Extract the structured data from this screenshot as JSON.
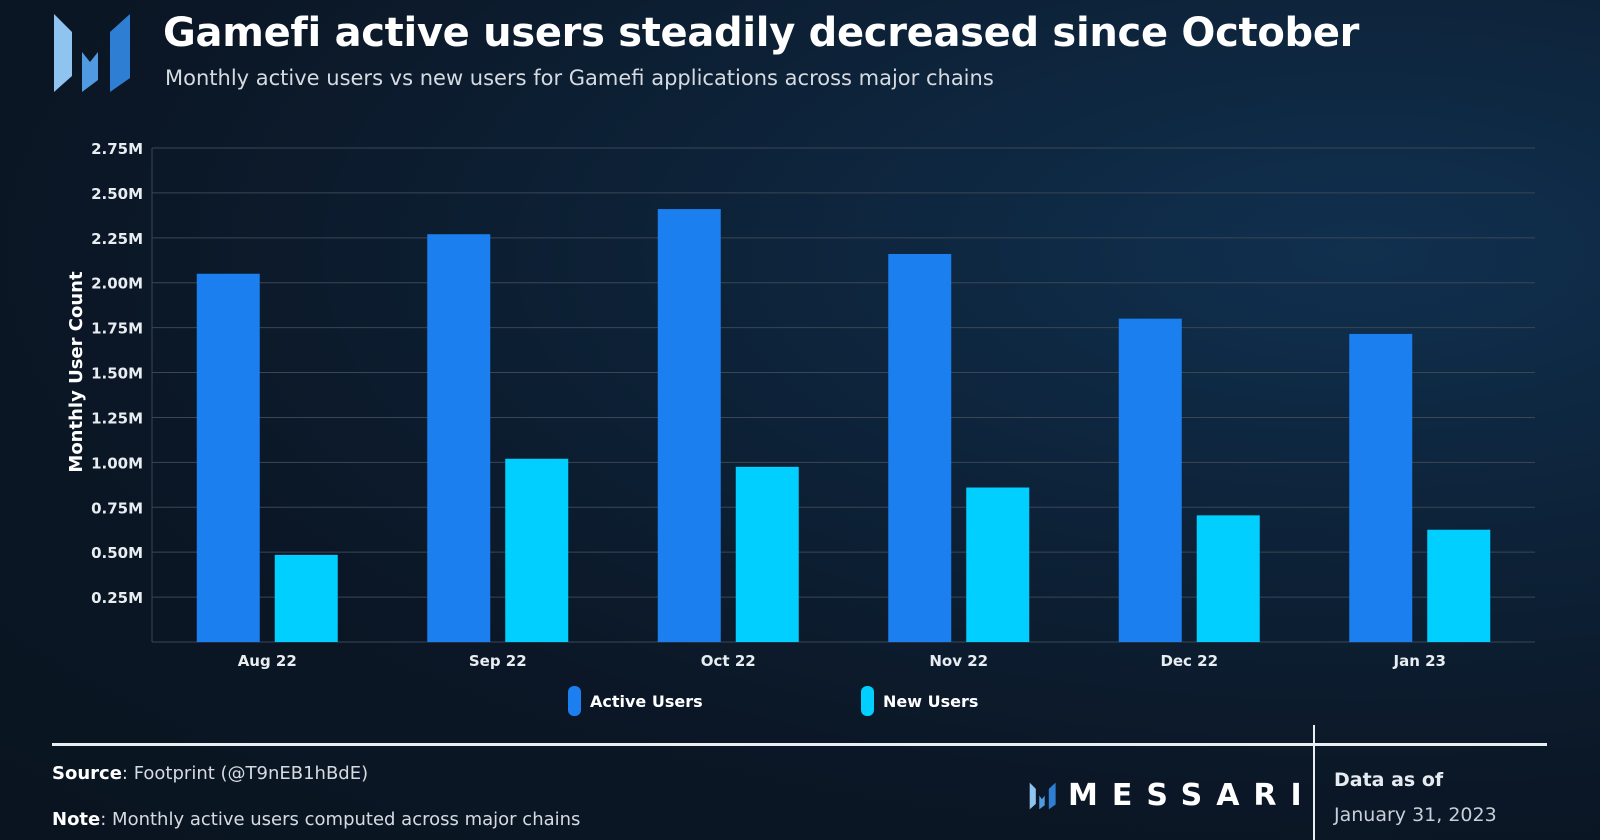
{
  "header": {
    "title": "Gamefi active users steadily decreased since October",
    "subtitle": "Monthly active users vs new users for Gamefi applications across major chains"
  },
  "chart_data": {
    "type": "bar",
    "title": "Gamefi active users steadily decreased since October",
    "subtitle": "Monthly active users vs new users for Gamefi applications across major chains",
    "xlabel": "",
    "ylabel": "Monthly User Count",
    "ylim": [
      0,
      2.75
    ],
    "y_unit": "M",
    "yticks": [
      0.25,
      0.5,
      0.75,
      1.0,
      1.25,
      1.5,
      1.75,
      2.0,
      2.25,
      2.5,
      2.75
    ],
    "ytick_labels": [
      "0.25M",
      "0.50M",
      "0.75M",
      "1.00M",
      "1.25M",
      "1.50M",
      "1.75M",
      "2.00M",
      "2.25M",
      "2.50M",
      "2.75M"
    ],
    "grid": true,
    "legend_position": "bottom-center",
    "categories": [
      "Aug 22",
      "Sep 22",
      "Oct 22",
      "Nov 22",
      "Dec 22",
      "Jan 23"
    ],
    "series": [
      {
        "name": "Active Users",
        "color": "#1b7ff0",
        "values": [
          2.05,
          2.27,
          2.41,
          2.16,
          1.8,
          1.715
        ]
      },
      {
        "name": "New Users",
        "color": "#00cfff",
        "values": [
          0.485,
          1.02,
          0.975,
          0.86,
          0.705,
          0.625
        ]
      }
    ]
  },
  "footer": {
    "source_label": "Source",
    "source_text": ": Footprint (@T9nEB1hBdE)",
    "note_label": "Note",
    "note_text": ": Monthly active users computed across major chains",
    "brand": "MESSARI",
    "data_as_of_label": "Data as of",
    "data_as_of_date": "January 31, 2023"
  },
  "colors": {
    "background": "#0b1726",
    "grid": "#3a4656",
    "text": "#ffffff",
    "logo_light": "#8fc3f0",
    "logo_mid": "#4f9ae0",
    "logo_dark": "#2e7fd4"
  }
}
